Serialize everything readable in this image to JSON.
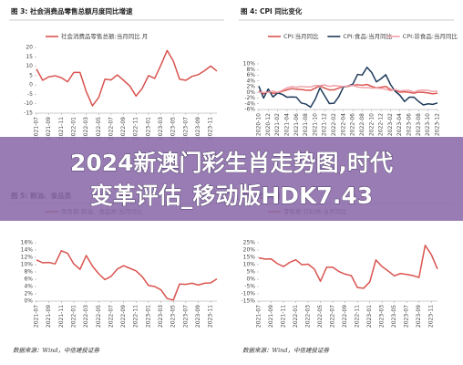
{
  "chart_data": [
    {
      "type": "line",
      "title": "图 3: 社会消费品零售总额月度同比增速",
      "categories": [
        "2021-07",
        null,
        "2021-09",
        null,
        "2021-11",
        null,
        "2022-01",
        null,
        "2022-03",
        null,
        "2022-05",
        null,
        "2022-07",
        null,
        "2022-09",
        null,
        "2022-11",
        null,
        "2023-01",
        null,
        "2023-03",
        null,
        "2023-05",
        null,
        "2023-07",
        null,
        "2023-09",
        null,
        "2023-11",
        null
      ],
      "series": [
        {
          "name": "社会消费品零售总额:当月同比 月",
          "color": "#d9534f",
          "values": [
            8.5,
            2.5,
            4.4,
            4.9,
            3.9,
            1.7,
            6.7,
            6.7,
            -3.5,
            -11.1,
            -6.7,
            3.1,
            2.7,
            5.4,
            2.5,
            -0.5,
            -5.9,
            -1.8,
            5.0,
            3.5,
            10.6,
            18.4,
            12.7,
            3.1,
            2.5,
            4.6,
            5.5,
            7.6,
            10.1,
            7.4
          ]
        }
      ],
      "ylim": [
        -15,
        20
      ],
      "yticks": [
        20,
        15,
        10,
        5,
        0,
        -5,
        -10,
        -15
      ]
    },
    {
      "type": "line",
      "title": "图 4: CPI 同比变化",
      "categories": [
        "2020-10",
        null,
        "2020-12",
        null,
        "2021-02",
        null,
        "2021-04",
        null,
        "2021-06",
        null,
        "2021-08",
        null,
        "2021-10",
        null,
        "2021-12",
        null,
        "2022-02",
        null,
        "2022-04",
        null,
        "2022-06",
        null,
        "2022-08",
        null,
        "2022-10",
        null,
        "2022-12",
        null,
        "2023-02",
        null,
        "2023-04",
        null,
        "2023-06",
        null,
        "2023-08",
        null,
        "2023-10",
        null,
        "2023-12"
      ],
      "series": [
        {
          "name": "CPI:当月同比",
          "color": "#d9534f",
          "values": [
            0.5,
            -0.5,
            0.2,
            -0.3,
            -0.2,
            0.4,
            0.9,
            1.3,
            1.1,
            1.0,
            0.8,
            0.7,
            1.5,
            2.3,
            1.5,
            0.9,
            0.9,
            1.5,
            2.1,
            2.1,
            2.5,
            2.7,
            2.5,
            2.8,
            2.1,
            1.6,
            1.8,
            2.1,
            1.0,
            0.7,
            0.1,
            0.2,
            0.0,
            -0.3,
            0.1,
            0.0,
            -0.2,
            -0.5,
            -0.3
          ]
        },
        {
          "name": "CPI:食品:当月同比",
          "color": "#1f3b5c",
          "values": [
            2.2,
            -2.0,
            1.2,
            -1.6,
            -0.2,
            -0.7,
            -1.7,
            -1.6,
            -1.7,
            -3.7,
            -4.1,
            -5.2,
            -2.4,
            1.6,
            -1.2,
            -3.9,
            -3.8,
            -1.5,
            1.9,
            2.3,
            2.9,
            6.3,
            6.1,
            8.8,
            7.0,
            3.7,
            4.8,
            6.2,
            2.8,
            0.4,
            -1.0,
            -3.2,
            -1.7,
            -1.7,
            -3.2,
            -4.4,
            -4.0,
            -4.2,
            -3.7
          ]
        },
        {
          "name": "CPI:非食品:当月同比",
          "color": "#f0a0a8",
          "values": [
            0.1,
            0.0,
            0.0,
            0.4,
            0.0,
            0.7,
            1.6,
            2.0,
            1.8,
            2.1,
            1.9,
            1.9,
            2.4,
            2.4,
            2.6,
            2.1,
            2.4,
            2.2,
            2.1,
            2.3,
            2.5,
            1.9,
            1.7,
            1.7,
            1.5,
            1.5,
            1.4,
            1.1,
            0.6,
            1.0,
            0.5,
            0.7,
            0.7,
            0.1,
            0.7,
            0.8,
            0.7,
            0.3,
            0.4
          ]
        }
      ],
      "ylim": [
        -6,
        10
      ],
      "yticks": [
        {
          "value": 10,
          "label": "10%"
        },
        {
          "value": 8,
          "label": "8%"
        },
        {
          "value": 6,
          "label": "6%"
        },
        {
          "value": 4,
          "label": "4%"
        },
        {
          "value": 2,
          "label": "2%"
        },
        {
          "value": 0,
          "label": "0%"
        },
        {
          "value": -2,
          "label": "-2%"
        },
        {
          "value": -4,
          "label": "-4%"
        },
        {
          "value": -6,
          "label": "-6%"
        }
      ]
    },
    {
      "type": "line",
      "title": "图 5: 粮油、食品类",
      "categories": [
        "2021-07",
        null,
        "2021-09",
        null,
        "2021-11",
        null,
        "2022-01",
        null,
        "2022-03",
        null,
        "2022-05",
        null,
        "2022-07",
        null,
        "2022-09",
        null,
        "2022-11",
        null,
        "2023-01",
        null,
        "2023-03",
        null,
        "2023-05",
        null,
        "2023-07",
        null,
        "2023-09",
        null,
        "2023-11",
        null
      ],
      "series": [
        {
          "name": "零售额:粮油、食品类:当月同比",
          "color": "#d9534f",
          "values": [
            11.3,
            10.5,
            10.6,
            10.2,
            13.8,
            13.1,
            10.2,
            8.7,
            12.5,
            9.6,
            7.5,
            5.9,
            6.8,
            8.8,
            9.7,
            9.0,
            8.3,
            6.7,
            4.3,
            4.0,
            3.1,
            0.7,
            0.3,
            4.7,
            4.6,
            4.9,
            4.4,
            4.9,
            5.0,
            6.1
          ]
        }
      ],
      "ylim": [
        0,
        16
      ],
      "yticks": [
        {
          "value": 16,
          "label": "16%"
        },
        {
          "value": 14,
          "label": "14%"
        },
        {
          "value": 12,
          "label": "12%"
        },
        {
          "value": 10,
          "label": "10%"
        },
        {
          "value": 8,
          "label": "8%"
        },
        {
          "value": 6,
          "label": "6%"
        },
        {
          "value": 4,
          "label": "4%"
        },
        {
          "value": 2,
          "label": "2%"
        },
        {
          "value": 0,
          "label": "0%"
        }
      ]
    },
    {
      "type": "line",
      "title": "图 6: 饮料类",
      "categories": [
        "2021-07",
        null,
        "2021-09",
        null,
        "2021-11",
        null,
        "2022-01",
        null,
        "2022-03",
        null,
        "2022-05",
        null,
        "2022-07",
        null,
        "2022-09",
        null,
        "2022-11",
        null,
        "2023-01",
        null,
        "2023-03",
        null,
        "2023-05",
        null,
        "2023-07",
        null,
        "2023-09",
        null,
        "2023-11",
        null
      ],
      "series": [
        {
          "name": "零售额:饮料类:当月同比",
          "color": "#d9534f",
          "values": [
            14.6,
            13.8,
            13.9,
            10.7,
            8.7,
            11.5,
            13.3,
            9.9,
            10.3,
            7.0,
            -1.4,
            8.2,
            8.2,
            5.3,
            3.5,
            2.5,
            -5.7,
            -6.2,
            -1.9,
            13.2,
            8.7,
            5.6,
            2.3,
            3.9,
            3.3,
            2.5,
            1.2,
            23.2,
            16.9,
            7.0
          ]
        }
      ],
      "ylim": [
        -15,
        25
      ],
      "yticks": [
        {
          "value": 25,
          "label": "25%"
        },
        {
          "value": 20,
          "label": "20%"
        },
        {
          "value": 15,
          "label": "15%"
        },
        {
          "value": 10,
          "label": "10%"
        },
        {
          "value": 5,
          "label": "5%"
        },
        {
          "value": 0,
          "label": "0%"
        },
        {
          "value": -5,
          "label": "-5%"
        },
        {
          "value": -10,
          "label": "-10%"
        },
        {
          "value": -15,
          "label": "-15%"
        }
      ]
    }
  ],
  "sources": [
    "数据来源：Wind，中信建投证券",
    "数据来源：Wind，中信建投证券"
  ],
  "banner": [
    "2024新澳门彩生肖走势图,时代",
    "变革评估_移动版HDK7.43"
  ]
}
